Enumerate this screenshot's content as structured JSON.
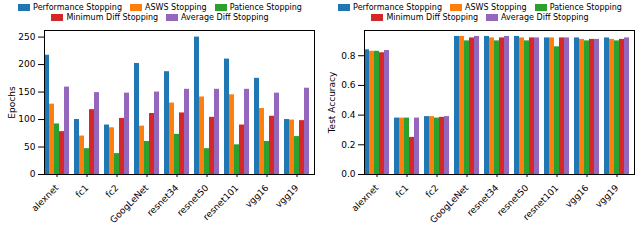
{
  "chart_data": [
    {
      "type": "bar",
      "ylabel": "Epochs",
      "legend": "top",
      "categories": [
        "alexnet",
        "fc1",
        "fc2",
        "GoogLeNet",
        "resnet34",
        "resnet50",
        "resnet101",
        "vgg16",
        "vgg19"
      ],
      "series": [
        {
          "name": "Performance Stopping",
          "color": "#1f77b4",
          "values": [
            217,
            100,
            90,
            202,
            187,
            250,
            210,
            175,
            100
          ]
        },
        {
          "name": "ASWS Stopping",
          "color": "#ff7f0e",
          "values": [
            128,
            70,
            85,
            88,
            130,
            141,
            145,
            120,
            99
          ]
        },
        {
          "name": "Patience Stopping",
          "color": "#2ca02c",
          "values": [
            92,
            47,
            38,
            60,
            73,
            47,
            54,
            60,
            69
          ]
        },
        {
          "name": "Minimum Diff Stopping",
          "color": "#d62728",
          "values": [
            78,
            118,
            102,
            111,
            112,
            104,
            90,
            106,
            98
          ]
        },
        {
          "name": "Average Diff Stopping",
          "color": "#9467bd",
          "values": [
            159,
            149,
            148,
            150,
            155,
            155,
            155,
            148,
            157
          ]
        }
      ],
      "ylim": [
        0,
        262
      ],
      "yticks": [
        0,
        50,
        100,
        150,
        200,
        250
      ]
    },
    {
      "type": "bar",
      "ylabel": "Test Accuracy",
      "legend": "top",
      "categories": [
        "alexnet",
        "fc1",
        "fc2",
        "GoogLeNet",
        "resnet34",
        "resnet50",
        "resnet101",
        "vgg16",
        "vgg19"
      ],
      "series": [
        {
          "name": "Performance Stopping",
          "color": "#1f77b4",
          "values": [
            0.84,
            0.38,
            0.39,
            0.93,
            0.93,
            0.93,
            0.92,
            0.92,
            0.92
          ]
        },
        {
          "name": "ASWS Stopping",
          "color": "#ff7f0e",
          "values": [
            0.83,
            0.38,
            0.39,
            0.93,
            0.92,
            0.92,
            0.92,
            0.91,
            0.91
          ]
        },
        {
          "name": "Patience Stopping",
          "color": "#2ca02c",
          "values": [
            0.83,
            0.38,
            0.38,
            0.9,
            0.9,
            0.9,
            0.86,
            0.9,
            0.9
          ]
        },
        {
          "name": "Minimum Diff Stopping",
          "color": "#d62728",
          "values": [
            0.82,
            0.25,
            0.385,
            0.92,
            0.92,
            0.92,
            0.92,
            0.91,
            0.91
          ]
        },
        {
          "name": "Average Diff Stopping",
          "color": "#9467bd",
          "values": [
            0.835,
            0.38,
            0.39,
            0.93,
            0.93,
            0.92,
            0.92,
            0.91,
            0.92
          ]
        }
      ],
      "ylim": [
        0,
        0.97
      ],
      "yticks": [
        {
          "value": 0,
          "label": "0.0"
        },
        {
          "value": 0.2,
          "label": "0.2"
        },
        {
          "value": 0.4,
          "label": "0.4"
        },
        {
          "value": 0.6,
          "label": "0.6"
        },
        {
          "value": 0.8,
          "label": "0.8"
        }
      ]
    }
  ]
}
